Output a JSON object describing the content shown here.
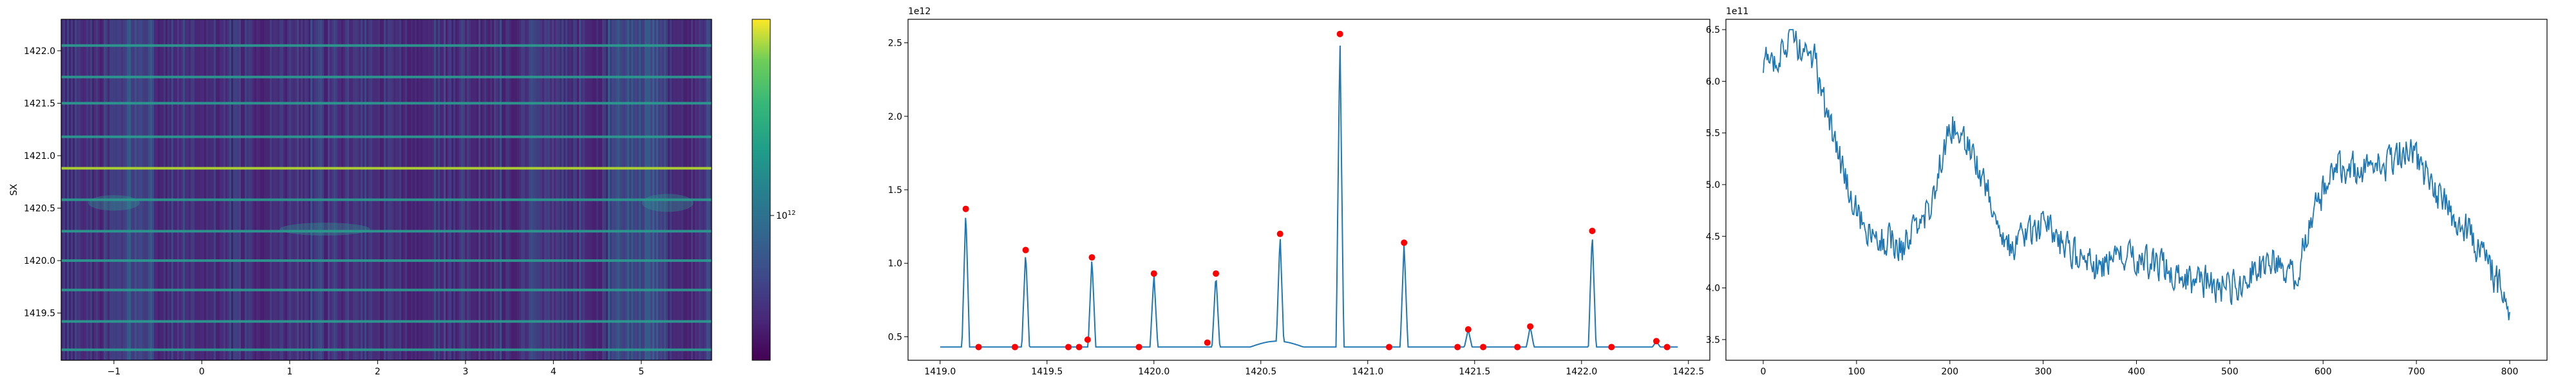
{
  "chart_data": [
    {
      "type": "heatmap",
      "xlabel": "",
      "ylabel": "SX",
      "xlim": [
        -1.6,
        5.8
      ],
      "ylim": [
        1419.05,
        1422.3
      ],
      "xticks": [
        "−1",
        "0",
        "1",
        "2",
        "3",
        "4",
        "5"
      ],
      "yticks": [
        "1419.5",
        "1420.0",
        "1420.5",
        "1421.0",
        "1421.5",
        "1422.0"
      ],
      "colorbar": {
        "scale": "log",
        "tick_label": "10",
        "tick_exponent": "12",
        "colormap": "viridis"
      },
      "bright_rows": [
        1419.15,
        1419.42,
        1419.72,
        1420.0,
        1420.28,
        1420.58,
        1420.88,
        1421.18,
        1421.5,
        1421.75,
        1422.05
      ],
      "brightest_row": 1420.88
    },
    {
      "type": "line",
      "exponent_label": "1e12",
      "xlabel": "",
      "ylabel": "",
      "xlim": [
        1418.85,
        1422.6
      ],
      "ylim": [
        0.34,
        2.66
      ],
      "xticks": [
        "1419.0",
        "1419.5",
        "1420.0",
        "1420.5",
        "1421.0",
        "1421.5",
        "1422.0",
        "1422.5"
      ],
      "yticks": [
        "0.5",
        "1.0",
        "1.5",
        "2.0",
        "2.5"
      ],
      "baseline": 0.43,
      "peaks": [
        {
          "x": 1419.12,
          "y": 1.37
        },
        {
          "x": 1419.4,
          "y": 1.09
        },
        {
          "x": 1419.71,
          "y": 1.04
        },
        {
          "x": 1420.0,
          "y": 0.93
        },
        {
          "x": 1420.29,
          "y": 0.93
        },
        {
          "x": 1420.59,
          "y": 1.2
        },
        {
          "x": 1420.87,
          "y": 2.56
        },
        {
          "x": 1421.17,
          "y": 1.14
        },
        {
          "x": 1421.47,
          "y": 0.55
        },
        {
          "x": 1421.76,
          "y": 0.57
        },
        {
          "x": 1422.05,
          "y": 1.22
        },
        {
          "x": 1422.35,
          "y": 0.47
        }
      ],
      "markers": [
        {
          "x": 1419.12,
          "y": 1.37
        },
        {
          "x": 1419.18,
          "y": 0.43
        },
        {
          "x": 1419.35,
          "y": 0.43
        },
        {
          "x": 1419.4,
          "y": 1.09
        },
        {
          "x": 1419.6,
          "y": 0.43
        },
        {
          "x": 1419.65,
          "y": 0.43
        },
        {
          "x": 1419.69,
          "y": 0.48
        },
        {
          "x": 1419.71,
          "y": 1.04
        },
        {
          "x": 1419.93,
          "y": 0.43
        },
        {
          "x": 1420.0,
          "y": 0.93
        },
        {
          "x": 1420.25,
          "y": 0.46
        },
        {
          "x": 1420.29,
          "y": 0.93
        },
        {
          "x": 1420.59,
          "y": 1.2
        },
        {
          "x": 1420.87,
          "y": 2.56
        },
        {
          "x": 1421.1,
          "y": 0.43
        },
        {
          "x": 1421.17,
          "y": 1.14
        },
        {
          "x": 1421.42,
          "y": 0.43
        },
        {
          "x": 1421.47,
          "y": 0.55
        },
        {
          "x": 1421.54,
          "y": 0.43
        },
        {
          "x": 1421.7,
          "y": 0.43
        },
        {
          "x": 1421.76,
          "y": 0.57
        },
        {
          "x": 1422.05,
          "y": 1.22
        },
        {
          "x": 1422.14,
          "y": 0.43
        },
        {
          "x": 1422.35,
          "y": 0.47
        },
        {
          "x": 1422.4,
          "y": 0.43
        }
      ],
      "marker_color": "#ff0000",
      "line_color": "#1f77b4"
    },
    {
      "type": "line",
      "exponent_label": "1e11",
      "xlabel": "",
      "ylabel": "",
      "xlim": [
        -40,
        840
      ],
      "ylim": [
        3.3,
        6.6
      ],
      "xticks": [
        "0",
        "100",
        "200",
        "300",
        "400",
        "500",
        "600",
        "700",
        "800"
      ],
      "yticks": [
        "3.5",
        "4.0",
        "4.5",
        "5.0",
        "5.5",
        "6.0",
        "6.5"
      ],
      "x_range": [
        0,
        800
      ],
      "trend_x": [
        0,
        30,
        55,
        70,
        90,
        110,
        150,
        180,
        200,
        230,
        260,
        300,
        350,
        400,
        450,
        500,
        540,
        570,
        590,
        610,
        640,
        670,
        690,
        710,
        730,
        760,
        790,
        800
      ],
      "trend_y": [
        6.15,
        6.4,
        6.2,
        5.6,
        5.0,
        4.5,
        4.4,
        4.8,
        5.6,
        5.2,
        4.4,
        4.6,
        4.2,
        4.3,
        4.1,
        4.0,
        4.25,
        4.1,
        4.7,
        5.2,
        5.15,
        5.2,
        5.4,
        5.1,
        4.8,
        4.5,
        4.0,
        3.8
      ],
      "noise_amplitude": 0.22,
      "line_color": "#1f77b4"
    }
  ]
}
